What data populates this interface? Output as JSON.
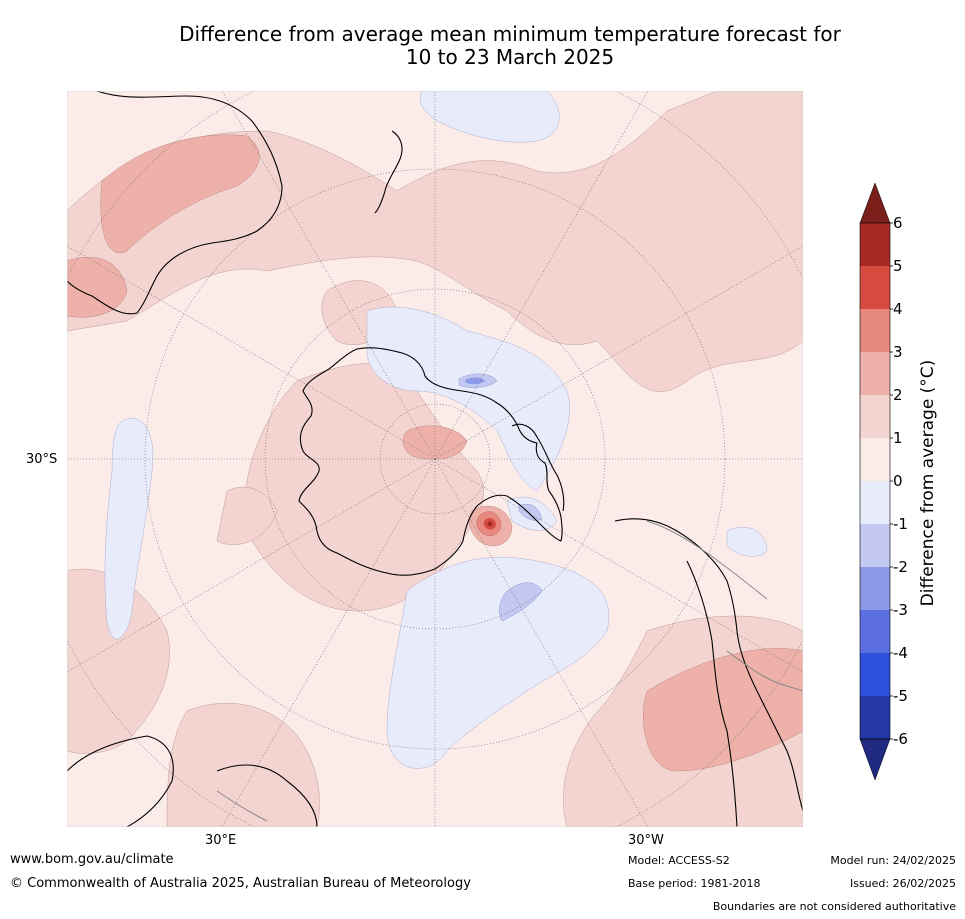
{
  "title_line1": "Difference from average mean minimum temperature forecast for",
  "title_line2": "10 to 23 March 2025",
  "map_labels": {
    "lat_30s": "30°S",
    "lon_30e": "30°E",
    "lon_30w": "30°W"
  },
  "colorbar": {
    "label": "Difference from average (°C)",
    "ticks": [
      "6",
      "5",
      "4",
      "3",
      "2",
      "1",
      "0",
      "-1",
      "-2",
      "-3",
      "-4",
      "-5",
      "-6"
    ],
    "colors": {
      "gt6": "#7a1f1a",
      "5_6": "#a82a25",
      "4_5": "#d74c40",
      "3_4": "#e8897f",
      "2_3": "#edb1aa",
      "1_2": "#f4d4d0",
      "0_1": "#fbecea",
      "m1_0": "#e8ebfa",
      "m2_m1": "#c3c9f1",
      "m3_m2": "#8c98e8",
      "m4_m3": "#5b6fe0",
      "m5_m4": "#2f4fdd",
      "m6_m5": "#2438a8",
      "lt_m6": "#1f2a80"
    }
  },
  "footer": {
    "url": "www.bom.gov.au/climate",
    "copyright": "© Commonwealth of Australia 2025, Australian Bureau of Meteorology",
    "model": "Model: ACCESS-S2",
    "base_period": "Base period: 1981-2018",
    "model_run": "Model run: 24/02/2025",
    "issued": "Issued: 26/02/2025",
    "boundaries": "Boundaries are not considered authoritative"
  }
}
